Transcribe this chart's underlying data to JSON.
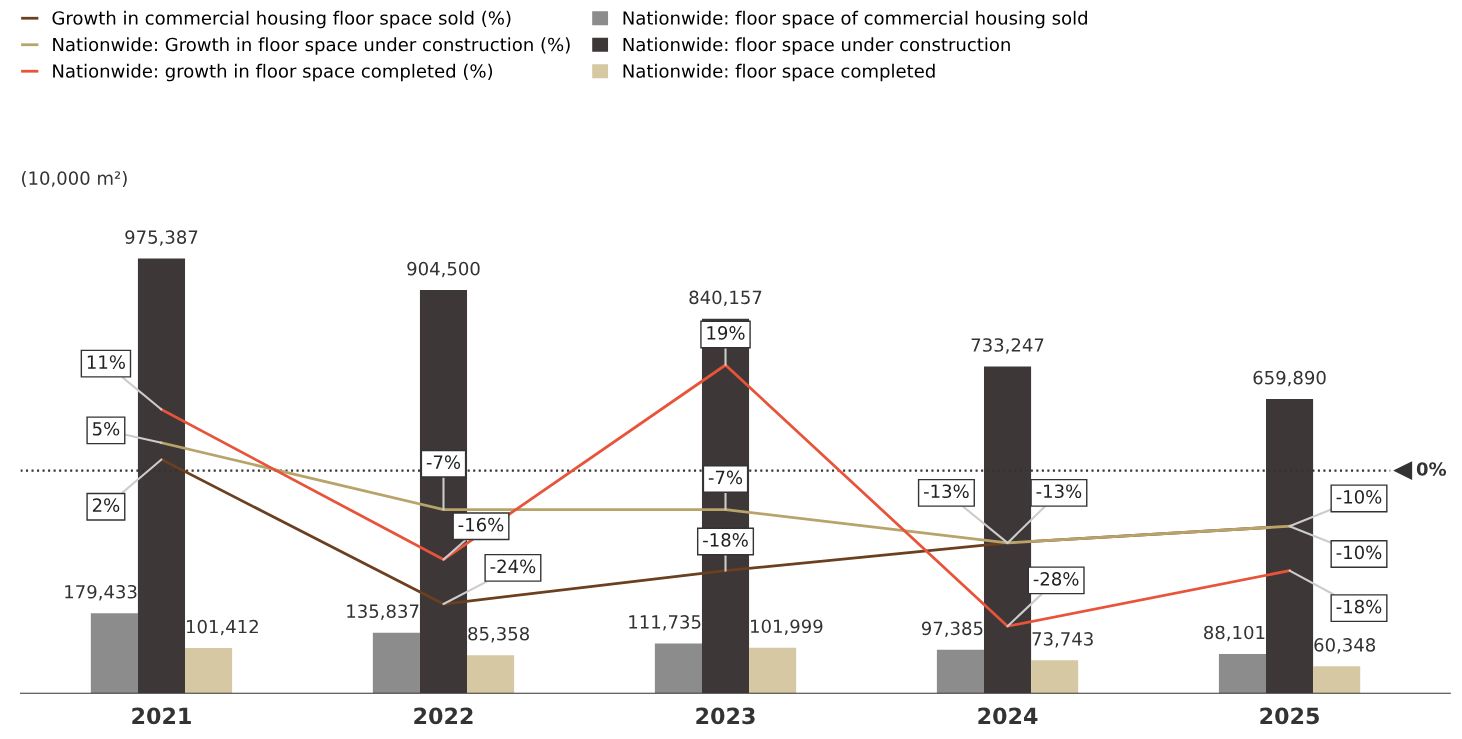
{
  "chart_data": {
    "type": "bar",
    "ylabel": "(10,000 m²)",
    "categories": [
      "2021",
      "2022",
      "2023",
      "2024",
      "2025"
    ],
    "series": [
      {
        "name": "Nationwide: floor space of commercial housing sold",
        "color": "#8c8c8c",
        "values": [
          179433,
          135837,
          111735,
          97385,
          88101
        ],
        "value_labels": [
          "179,433",
          "135,837",
          "111,735",
          "97,385",
          "88,101"
        ]
      },
      {
        "name": "Nationwide: floor space under construction",
        "color": "#3d3837",
        "values": [
          975387,
          904500,
          840157,
          733247,
          659890
        ],
        "value_labels": [
          "975,387",
          "904,500",
          "840,157",
          "733,247",
          "659,890"
        ]
      },
      {
        "name": "Nationwide: floor space completed",
        "color": "#d5c8a2",
        "values": [
          101412,
          85358,
          101999,
          73743,
          60348
        ],
        "value_labels": [
          "101,412",
          "85,358",
          "101,999",
          "73,743",
          "60,348"
        ]
      },
      {
        "name": "Growth in commercial housing floor space sold (%)",
        "type": "line",
        "axis": "y2",
        "color": "#6b3f1f",
        "values": [
          2,
          -24,
          -18,
          -13,
          -10
        ],
        "value_labels": [
          "2%",
          "-24%",
          "-18%",
          "-13%",
          "-10%"
        ]
      },
      {
        "name": "Nationwide: Growth in floor space under construction (%)",
        "type": "line",
        "axis": "y2",
        "color": "#b8a46a",
        "values": [
          5,
          -7,
          -7,
          -13,
          -10
        ],
        "value_labels": [
          "5%",
          "-7%",
          "-7%",
          "-13%",
          "-10%"
        ]
      },
      {
        "name": "Nationwide: growth in floor space completed (%)",
        "type": "line",
        "axis": "y2",
        "color": "#e8543a",
        "values": [
          11,
          -16,
          19,
          -28,
          -18
        ],
        "value_labels": [
          "11%",
          "-16%",
          "19%",
          "-28%",
          "-18%"
        ]
      }
    ],
    "data_labels": true,
    "ref_lines": [
      {
        "axis": "y2",
        "value": 0,
        "label": "0%",
        "line_style": "dotted",
        "color": "#333333"
      }
    ],
    "legend": "top left",
    "grid": false
  }
}
